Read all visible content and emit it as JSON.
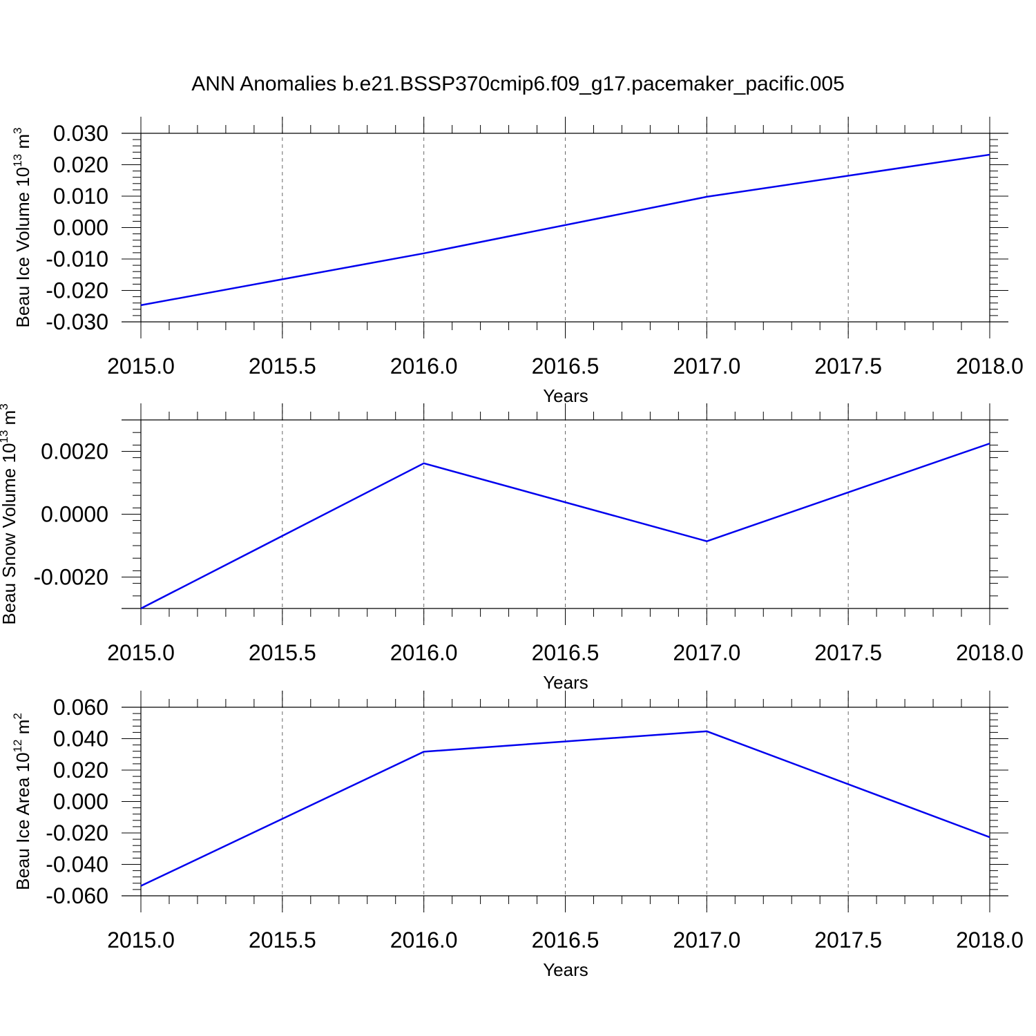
{
  "title": "ANN Anomalies b.e21.BSSP370cmip6.f09_g17.pacemaker_pacific.005",
  "chart_data": [
    {
      "type": "line",
      "xlabel": "Years",
      "ylabel": {
        "text": "Beau Ice Volume 10",
        "exponent": "13",
        "unit": "m",
        "unit_exponent": "3"
      },
      "x": [
        2015,
        2016,
        2017,
        2018
      ],
      "series": [
        {
          "values": [
            -0.0247,
            -0.0082,
            0.0098,
            0.0232
          ],
          "color": "#0000ee"
        }
      ],
      "xlim": [
        2015,
        2018
      ],
      "ylim": [
        -0.03,
        0.03
      ],
      "x_ticks": [
        2015.0,
        2015.5,
        2016.0,
        2016.5,
        2017.0,
        2017.5,
        2018.0
      ],
      "x_tick_labels": [
        "2015.0",
        "2015.5",
        "2016.0",
        "2016.5",
        "2017.0",
        "2017.5",
        "2018.0"
      ],
      "y_ticks": [
        0.03,
        0.02,
        0.01,
        0.0,
        -0.01,
        -0.02,
        -0.03
      ],
      "y_tick_labels": [
        "0.030",
        "0.020",
        "0.010",
        "0.000",
        "-0.010",
        "-0.020",
        "-0.030"
      ],
      "grid": "vertical dashed"
    },
    {
      "type": "line",
      "xlabel": "Years",
      "ylabel": {
        "text": "Beau Snow Volume 10",
        "exponent": "13",
        "unit": "m",
        "unit_exponent": "3"
      },
      "x": [
        2015,
        2016,
        2017,
        2018
      ],
      "series": [
        {
          "values": [
            -0.003,
            0.00162,
            -0.00086,
            0.00225
          ],
          "color": "#0000ee"
        }
      ],
      "xlim": [
        2015,
        2018
      ],
      "ylim": [
        -0.003,
        0.003
      ],
      "x_ticks": [
        2015.0,
        2015.5,
        2016.0,
        2016.5,
        2017.0,
        2017.5,
        2018.0
      ],
      "x_tick_labels": [
        "2015.0",
        "2015.5",
        "2016.0",
        "2016.5",
        "2017.0",
        "2017.5",
        "2018.0"
      ],
      "y_ticks": [
        0.002,
        0.0,
        -0.002
      ],
      "y_tick_labels": [
        "0.0020",
        "0.0000",
        "-0.0020"
      ],
      "grid": "vertical dashed"
    },
    {
      "type": "line",
      "xlabel": "Years",
      "ylabel": {
        "text": "Beau Ice Area 10",
        "exponent": "12",
        "unit": "m",
        "unit_exponent": "2"
      },
      "x": [
        2015,
        2016,
        2017,
        2018
      ],
      "series": [
        {
          "values": [
            -0.0537,
            0.0317,
            0.0447,
            -0.0227
          ],
          "color": "#0000ee"
        }
      ],
      "xlim": [
        2015,
        2018
      ],
      "ylim": [
        -0.06,
        0.06
      ],
      "x_ticks": [
        2015.0,
        2015.5,
        2016.0,
        2016.5,
        2017.0,
        2017.5,
        2018.0
      ],
      "x_tick_labels": [
        "2015.0",
        "2015.5",
        "2016.0",
        "2016.5",
        "2017.0",
        "2017.5",
        "2018.0"
      ],
      "y_ticks": [
        0.06,
        0.04,
        0.02,
        0.0,
        -0.02,
        -0.04,
        -0.06
      ],
      "y_tick_labels": [
        "0.060",
        "0.040",
        "0.020",
        "0.000",
        "-0.020",
        "-0.040",
        "-0.060"
      ],
      "grid": "vertical dashed"
    }
  ]
}
